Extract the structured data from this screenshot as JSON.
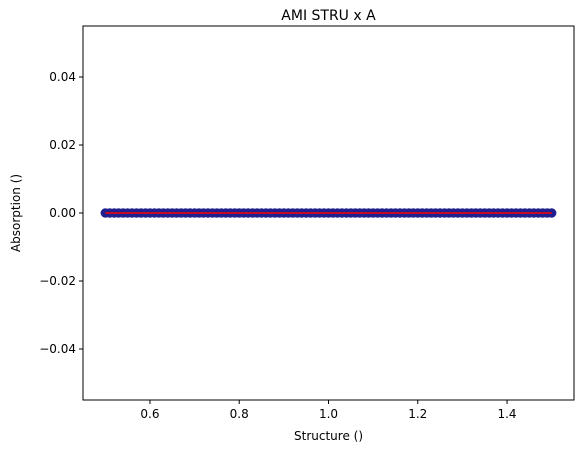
{
  "chart_data": {
    "type": "scatter",
    "title": "AMI STRU x A",
    "xlabel": "Structure ()",
    "ylabel": "Absorption ()",
    "xlim": [
      0.45,
      1.55
    ],
    "ylim": [
      -0.055,
      0.055
    ],
    "x_ticks": [
      0.6,
      0.8,
      1.0,
      1.2,
      1.4
    ],
    "x_tick_labels": [
      "0.6",
      "0.8",
      "1.0",
      "1.2",
      "1.4"
    ],
    "y_ticks": [
      -0.04,
      -0.02,
      0.0,
      0.02,
      0.04
    ],
    "y_tick_labels": [
      "−0.04",
      "−0.02",
      "0.00",
      "0.02",
      "0.04"
    ],
    "grid": false,
    "series": [
      {
        "kind": "scatter",
        "x_start": 0.5,
        "x_end": 1.5,
        "y": 0.0,
        "count": 101,
        "color": "#1f1f8f"
      },
      {
        "kind": "line",
        "x": [
          0.5,
          1.5
        ],
        "y": [
          0.0,
          0.0
        ],
        "color": "#ff0000"
      }
    ]
  }
}
